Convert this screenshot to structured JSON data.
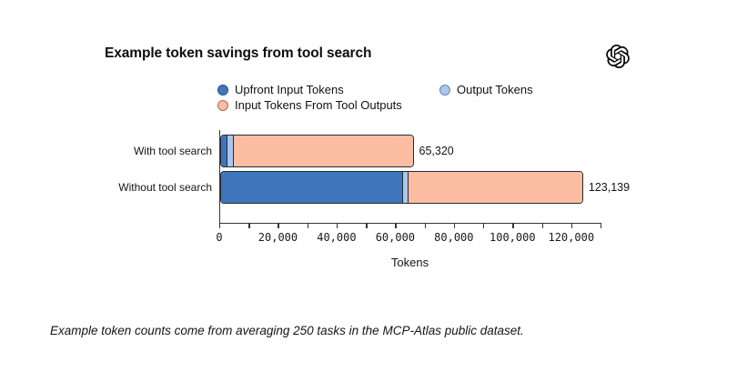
{
  "header": {
    "title": "Example token savings from tool search",
    "logo": "openai-logo"
  },
  "legend": {
    "items": [
      {
        "label": "Upfront Input Tokens",
        "color": "#3e76bc",
        "border": "#27518a"
      },
      {
        "label": "Output Tokens",
        "color": "#aac7eb",
        "border": "#6a85ad"
      },
      {
        "label": "Input Tokens From Tool Outputs",
        "color": "#fcbda3",
        "border": "#ab6a5e"
      }
    ]
  },
  "chart_data": {
    "type": "bar",
    "orientation": "horizontal",
    "stacked": true,
    "title": "Example token savings from tool search",
    "xlabel": "Tokens",
    "categories": [
      "With tool search",
      "Without tool search"
    ],
    "series": [
      {
        "name": "Upfront Input Tokens",
        "color": "#3e76bc",
        "values": [
          2000,
          61700
        ]
      },
      {
        "name": "Output Tokens",
        "color": "#aac7eb",
        "values": [
          2100,
          1900
        ]
      },
      {
        "name": "Input Tokens From Tool Outputs",
        "color": "#fcbda3",
        "values": [
          61220,
          59539
        ]
      }
    ],
    "totals": [
      65320,
      123139
    ],
    "total_labels": [
      "65,320",
      "123,139"
    ],
    "xlim": [
      0,
      130000
    ],
    "x_major_ticks": [
      0,
      20000,
      40000,
      60000,
      80000,
      100000,
      120000
    ],
    "x_major_tick_labels": [
      "0",
      "20,000",
      "40,000",
      "60,000",
      "80,000",
      "100,000",
      "120,000"
    ],
    "x_minor_tick_interval": 10000,
    "grid": false,
    "legend_position": "top",
    "bar_edge_color": "#262b33"
  },
  "footnote": "Example token counts come from averaging 250 tasks in the MCP-Atlas public dataset."
}
